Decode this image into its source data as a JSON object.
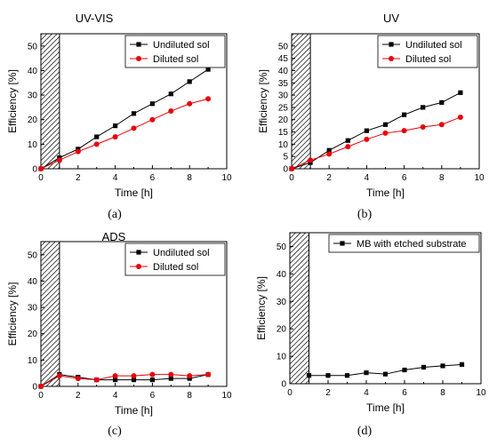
{
  "colors": {
    "undiluted": "#000000",
    "diluted": "#e8000b",
    "hatch": "#000000"
  },
  "chart_data": [
    {
      "panel": "(a)",
      "type": "line",
      "title": "UV-VIS",
      "xlabel": "Time [h]",
      "ylabel": "Efficiency [%]",
      "xlim": [
        0,
        10
      ],
      "ylim": [
        0,
        55
      ],
      "xticks": [
        0,
        2,
        4,
        6,
        8,
        10
      ],
      "yticks": [
        0,
        10,
        20,
        30,
        40,
        50
      ],
      "hatched_region": [
        0,
        1
      ],
      "legend": "top-right",
      "series": [
        {
          "name": "Undiluted sol",
          "marker": "square",
          "color": "#000000",
          "x": [
            0,
            1,
            2,
            3,
            4,
            5,
            6,
            7,
            8,
            9
          ],
          "y": [
            0,
            4.5,
            8,
            13,
            17.5,
            22.5,
            26.5,
            30.5,
            35.5,
            40.5
          ]
        },
        {
          "name": "Diluted sol",
          "marker": "circle",
          "color": "#e8000b",
          "x": [
            0,
            1,
            2,
            3,
            4,
            5,
            6,
            7,
            8,
            9
          ],
          "y": [
            0,
            3.5,
            7,
            10,
            13,
            16.5,
            20,
            23.5,
            26.5,
            28.5
          ]
        }
      ]
    },
    {
      "panel": "(b)",
      "type": "line",
      "title": "UV",
      "xlabel": "Time [h]",
      "ylabel": "Efficiency [%]",
      "xlim": [
        0,
        10
      ],
      "ylim": [
        0,
        55
      ],
      "xticks": [
        0,
        2,
        4,
        6,
        8,
        10
      ],
      "yticks": [
        0,
        5,
        10,
        15,
        20,
        25,
        30,
        35,
        40,
        45,
        50
      ],
      "hatched_region": [
        0,
        1
      ],
      "legend": "top-right",
      "series": [
        {
          "name": "Undiluted sol",
          "marker": "square",
          "color": "#000000",
          "x": [
            0,
            1,
            2,
            3,
            4,
            5,
            6,
            7,
            8,
            9
          ],
          "y": [
            0,
            2.5,
            7.5,
            11.5,
            15.5,
            18,
            22,
            25,
            27,
            31
          ]
        },
        {
          "name": "Diluted sol",
          "marker": "circle",
          "color": "#e8000b",
          "x": [
            0,
            1,
            2,
            3,
            4,
            5,
            6,
            7,
            8,
            9
          ],
          "y": [
            0,
            3.5,
            6,
            9,
            12,
            14.5,
            15.5,
            17,
            18,
            21
          ]
        }
      ]
    },
    {
      "panel": "(c)",
      "type": "line",
      "title": "ADS",
      "xlabel": "Time [h]",
      "ylabel": "Efficiency [%]",
      "xlim": [
        0,
        10
      ],
      "ylim": [
        0,
        55
      ],
      "xticks": [
        0,
        2,
        4,
        6,
        8,
        10
      ],
      "yticks": [
        0,
        10,
        20,
        30,
        40,
        50
      ],
      "hatched_region": [
        0,
        1
      ],
      "legend": "top-right",
      "series": [
        {
          "name": "Undiluted sol",
          "marker": "square",
          "color": "#000000",
          "x": [
            0,
            1,
            2,
            3,
            4,
            5,
            6,
            7,
            8,
            9
          ],
          "y": [
            0,
            4.5,
            3.5,
            2.5,
            2.5,
            2.5,
            2.5,
            3,
            3,
            4.5
          ]
        },
        {
          "name": "Diluted sol",
          "marker": "circle",
          "color": "#e8000b",
          "x": [
            0,
            1,
            2,
            3,
            4,
            5,
            6,
            7,
            8,
            9
          ],
          "y": [
            0,
            4,
            3,
            2.5,
            4,
            4,
            4.5,
            4.5,
            4,
            4.5
          ]
        }
      ]
    },
    {
      "panel": "(d)",
      "type": "line",
      "title": "",
      "xlabel": "Time [h]",
      "ylabel": "Efficiency [%]",
      "xlim": [
        0,
        10
      ],
      "ylim": [
        0,
        55
      ],
      "xticks": [
        0,
        2,
        4,
        6,
        8,
        10
      ],
      "yticks": [
        0,
        10,
        20,
        30,
        40,
        50
      ],
      "hatched_region": [
        0,
        1
      ],
      "legend": "top-right",
      "series": [
        {
          "name": "MB with etched substrate",
          "marker": "square",
          "color": "#000000",
          "x": [
            1,
            2,
            3,
            4,
            5,
            6,
            7,
            8,
            9
          ],
          "y": [
            3,
            3,
            3,
            4,
            3.5,
            5,
            6,
            6.5,
            7
          ]
        }
      ]
    }
  ]
}
